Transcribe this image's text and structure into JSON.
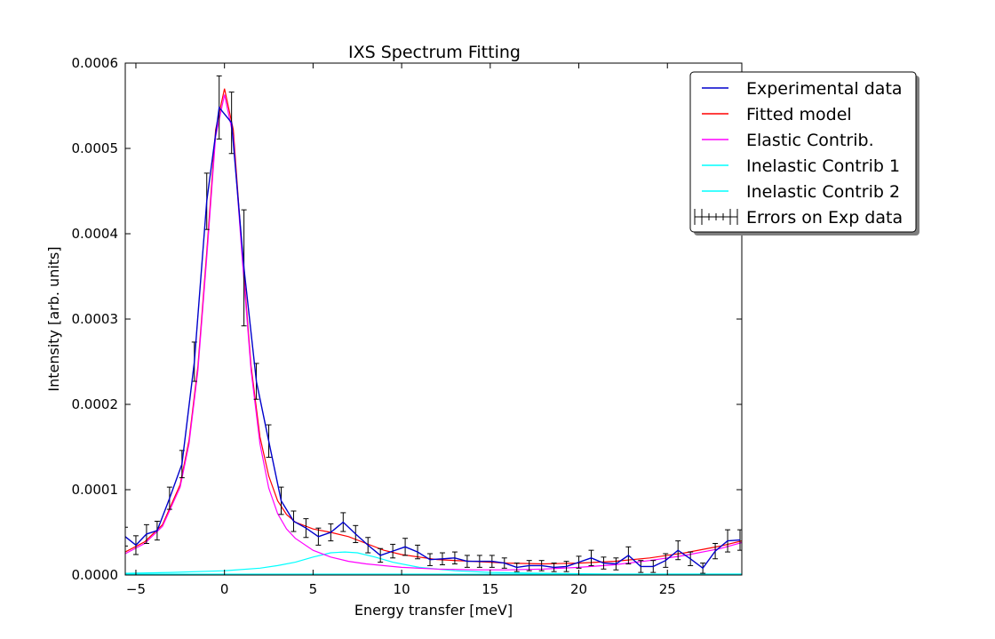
{
  "chart_data": {
    "type": "line",
    "title": "IXS Spectrum Fitting",
    "xlabel": "Energy transfer [meV]",
    "ylabel": "Intensity [arb. units]",
    "xlim": [
      -5.6,
      29.2
    ],
    "ylim": [
      0,
      0.0006
    ],
    "xticks": [
      -5,
      0,
      5,
      10,
      15,
      20,
      25
    ],
    "xtick_labels": [
      "−5",
      "0",
      "5",
      "10",
      "15",
      "20",
      "25"
    ],
    "yticks": [
      0,
      0.0001,
      0.0002,
      0.0003,
      0.0004,
      0.0005,
      0.0006
    ],
    "ytick_labels": [
      "0.0000",
      "0.0001",
      "0.0002",
      "0.0003",
      "0.0004",
      "0.0005",
      "0.0006"
    ],
    "grid": false,
    "legend_position": "top-right",
    "colors": {
      "experimental": "#0000cc",
      "fitted": "#ff0000",
      "elastic": "#ff00ff",
      "inelastic1": "#00ffff",
      "inelastic2": "#00ffff",
      "errors": "#000000"
    },
    "legend": [
      {
        "key": "experimental",
        "label": "Experimental data"
      },
      {
        "key": "fitted",
        "label": "Fitted model"
      },
      {
        "key": "elastic",
        "label": "Elastic Contrib."
      },
      {
        "key": "inelastic1",
        "label": "Inelastic Contrib 1"
      },
      {
        "key": "inelastic2",
        "label": "Inelastic Contrib 2"
      },
      {
        "key": "errors",
        "label": "Errors on Exp data"
      }
    ],
    "experimental": {
      "x": [
        -5.6,
        -5.0,
        -4.4,
        -3.8,
        -3.1,
        -2.4,
        -1.7,
        -1.0,
        -0.3,
        0.4,
        1.1,
        1.8,
        2.5,
        3.2,
        3.9,
        4.6,
        5.3,
        6.0,
        6.7,
        7.4,
        8.1,
        8.8,
        9.5,
        10.2,
        10.9,
        11.6,
        12.3,
        13.0,
        13.7,
        14.4,
        15.1,
        15.8,
        16.5,
        17.2,
        17.9,
        18.6,
        19.3,
        20.0,
        20.7,
        21.4,
        22.1,
        22.8,
        23.5,
        24.2,
        24.9,
        25.6,
        26.3,
        27.0,
        27.7,
        28.4,
        29.1
      ],
      "y": [
        4.5e-05,
        3.5e-05,
        4.8e-05,
        5.2e-05,
        9e-05,
        0.00013,
        0.00025,
        0.000438,
        0.000548,
        0.00053,
        0.00036,
        0.000227,
        0.000157,
        8.7e-05,
        6.3e-05,
        5.5e-05,
        4.5e-05,
        5e-05,
        6.2e-05,
        4.8e-05,
        3.5e-05,
        2.3e-05,
        2.8e-05,
        3.3e-05,
        2.7e-05,
        1.8e-05,
        1.9e-05,
        2e-05,
        1.6e-05,
        1.6e-05,
        1.6e-05,
        1.4e-05,
        9e-06,
        1.1e-05,
        1.1e-05,
        9e-06,
        1e-05,
        1.5e-05,
        2e-05,
        1.4e-05,
        1.3e-05,
        2.3e-05,
        1e-05,
        1e-05,
        1.7e-05,
        2.9e-05,
        1.9e-05,
        8e-06,
        2.8e-05,
        4e-05,
        4.1e-05
      ],
      "yerr": [
        1.1e-05,
        1.1e-05,
        1.1e-05,
        1.1e-05,
        1.3e-05,
        1.6e-05,
        2.3e-05,
        3.3e-05,
        3.7e-05,
        3.6e-05,
        6.8e-05,
        2.1e-05,
        1.9e-05,
        1.6e-05,
        1.2e-05,
        1.1e-05,
        1e-05,
        1e-05,
        1.1e-05,
        1e-05,
        9e-06,
        8e-06,
        8e-06,
        1e-05,
        8e-06,
        7e-06,
        7e-06,
        7e-06,
        7e-06,
        7e-06,
        7e-06,
        6e-06,
        5e-06,
        6e-06,
        6e-06,
        5e-06,
        6e-06,
        7e-06,
        9e-06,
        7e-06,
        7e-06,
        1e-05,
        7e-06,
        7e-06,
        8e-06,
        1.1e-05,
        8e-06,
        6e-06,
        9e-06,
        1.3e-05,
        1.2e-05
      ]
    },
    "fitted": {
      "x": [
        -5.6,
        -4.5,
        -3.5,
        -2.5,
        -2.0,
        -1.5,
        -1.0,
        -0.5,
        0.0,
        0.5,
        1.0,
        1.5,
        2.0,
        2.5,
        3.0,
        3.5,
        4.0,
        5.0,
        6.0,
        7.0,
        8.0,
        9.0,
        10.0,
        12.0,
        14.0,
        16.0,
        18.0,
        20.0,
        22.0,
        24.0,
        26.0,
        28.0,
        29.2
      ],
      "y": [
        2.7e-05,
        3.9e-05,
        5.9e-05,
        0.000106,
        0.000158,
        0.000245,
        0.000378,
        0.000522,
        0.00057,
        0.000522,
        0.000378,
        0.000245,
        0.000162,
        0.000116,
        8.7e-05,
        7.1e-05,
        6.2e-05,
        5.4e-05,
        5e-05,
        4.5e-05,
        3.7e-05,
        2.9e-05,
        2.4e-05,
        1.8e-05,
        1.6e-05,
        1.4e-05,
        1.3e-05,
        1.4e-05,
        1.6e-05,
        2e-05,
        2.6e-05,
        3.4e-05,
        4e-05
      ]
    },
    "elastic": {
      "x": [
        -5.6,
        -4.5,
        -3.5,
        -2.5,
        -2.0,
        -1.5,
        -1.0,
        -0.5,
        0.0,
        0.5,
        1.0,
        1.5,
        2.0,
        2.5,
        3.0,
        3.5,
        4.0,
        5.0,
        6.0,
        7.0,
        8.0,
        10.0,
        12.0,
        14.0,
        16.0,
        18.0,
        20.0,
        22.0,
        24.0,
        26.0,
        28.0,
        29.2
      ],
      "y": [
        2.5e-05,
        3.7e-05,
        5.7e-05,
        0.000103,
        0.000154,
        0.00024,
        0.000372,
        0.000514,
        0.000563,
        0.000514,
        0.000372,
        0.00024,
        0.000154,
        0.000102,
        7.2e-05,
        5.4e-05,
        4.3e-05,
        2.9e-05,
        2.1e-05,
        1.6e-05,
        1.3e-05,
        9e-06,
        7e-06,
        6e-06,
        6e-06,
        7e-06,
        9e-06,
        1.2e-05,
        1.7e-05,
        2.3e-05,
        3.1e-05,
        3.8e-05
      ]
    },
    "inelastic1": {
      "x": [
        -5.6,
        -3,
        0,
        2,
        3,
        4,
        5,
        6,
        6.8,
        7.5,
        8.5,
        9.5,
        11,
        13,
        15,
        18,
        22,
        26,
        29.2
      ],
      "y": [
        2e-06,
        3e-06,
        5e-06,
        8e-06,
        1.1e-05,
        1.5e-05,
        2.1e-05,
        2.6e-05,
        2.7e-05,
        2.6e-05,
        2.1e-05,
        1.5e-05,
        9e-06,
        5e-06,
        3e-06,
        2e-06,
        1e-06,
        1e-06,
        1e-06
      ]
    },
    "inelastic2": {
      "x": [
        -5.6,
        0,
        10,
        20,
        29.2
      ],
      "y": [
        1e-06,
        1e-06,
        1e-06,
        1e-06,
        1e-06
      ]
    }
  }
}
